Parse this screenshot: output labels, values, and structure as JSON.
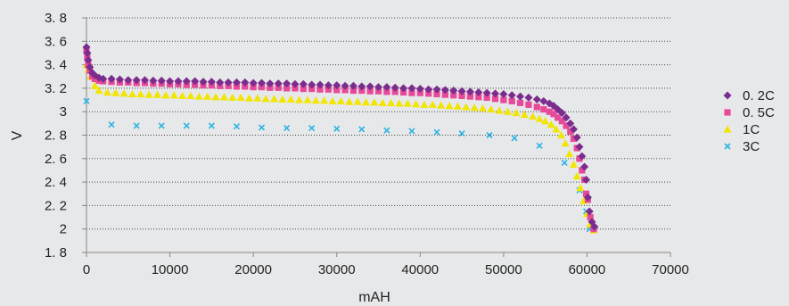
{
  "chart_data": {
    "type": "scatter",
    "xlabel": "mAH",
    "ylabel": "V",
    "xlim": [
      0,
      70000
    ],
    "ylim": [
      1.8,
      3.8
    ],
    "x_ticks": [
      "0",
      "10000",
      "20000",
      "30000",
      "40000",
      "50000",
      "60000",
      "70000"
    ],
    "x_tick_values": [
      0,
      10000,
      20000,
      30000,
      40000,
      50000,
      60000,
      70000
    ],
    "y_ticks": [
      "3. 8",
      "3. 6",
      "3. 4",
      "3. 2",
      "3",
      "2. 8",
      "2. 6",
      "2. 4",
      "2. 2",
      "2",
      "1. 8"
    ],
    "y_tick_values": [
      3.8,
      3.6,
      3.4,
      3.2,
      3.0,
      2.8,
      2.6,
      2.4,
      2.2,
      2.0,
      1.8
    ],
    "grid": "horizontal dotted",
    "legend_position": "right",
    "series": [
      {
        "name": "0. 2C",
        "marker": "diamond",
        "color": "#7b2d8e",
        "points": [
          [
            0,
            3.55
          ],
          [
            100,
            3.5
          ],
          [
            200,
            3.44
          ],
          [
            400,
            3.38
          ],
          [
            700,
            3.33
          ],
          [
            1000,
            3.31
          ],
          [
            1500,
            3.29
          ],
          [
            2000,
            3.28
          ],
          [
            3000,
            3.28
          ],
          [
            4000,
            3.275
          ],
          [
            5000,
            3.27
          ],
          [
            6000,
            3.27
          ],
          [
            7000,
            3.27
          ],
          [
            8000,
            3.265
          ],
          [
            9000,
            3.265
          ],
          [
            10000,
            3.26
          ],
          [
            11000,
            3.26
          ],
          [
            12000,
            3.26
          ],
          [
            13000,
            3.26
          ],
          [
            14000,
            3.255
          ],
          [
            15000,
            3.255
          ],
          [
            16000,
            3.25
          ],
          [
            17000,
            3.25
          ],
          [
            18000,
            3.25
          ],
          [
            19000,
            3.25
          ],
          [
            20000,
            3.245
          ],
          [
            21000,
            3.245
          ],
          [
            22000,
            3.24
          ],
          [
            23000,
            3.24
          ],
          [
            24000,
            3.24
          ],
          [
            25000,
            3.235
          ],
          [
            26000,
            3.235
          ],
          [
            27000,
            3.23
          ],
          [
            28000,
            3.23
          ],
          [
            29000,
            3.225
          ],
          [
            30000,
            3.225
          ],
          [
            31000,
            3.22
          ],
          [
            32000,
            3.22
          ],
          [
            33000,
            3.215
          ],
          [
            34000,
            3.215
          ],
          [
            35000,
            3.21
          ],
          [
            36000,
            3.21
          ],
          [
            37000,
            3.205
          ],
          [
            38000,
            3.2
          ],
          [
            39000,
            3.2
          ],
          [
            40000,
            3.195
          ],
          [
            41000,
            3.19
          ],
          [
            42000,
            3.19
          ],
          [
            43000,
            3.185
          ],
          [
            44000,
            3.18
          ],
          [
            45000,
            3.175
          ],
          [
            46000,
            3.17
          ],
          [
            47000,
            3.165
          ],
          [
            48000,
            3.16
          ],
          [
            49000,
            3.155
          ],
          [
            50000,
            3.15
          ],
          [
            51000,
            3.14
          ],
          [
            52000,
            3.13
          ],
          [
            53000,
            3.12
          ],
          [
            54000,
            3.105
          ],
          [
            54800,
            3.09
          ],
          [
            55500,
            3.07
          ],
          [
            56000,
            3.05
          ],
          [
            56500,
            3.02
          ],
          [
            57000,
            2.99
          ],
          [
            57500,
            2.95
          ],
          [
            58000,
            2.9
          ],
          [
            58400,
            2.85
          ],
          [
            58800,
            2.78
          ],
          [
            59100,
            2.7
          ],
          [
            59400,
            2.62
          ],
          [
            59700,
            2.53
          ],
          [
            59900,
            2.42
          ],
          [
            60100,
            2.27
          ],
          [
            60300,
            2.15
          ],
          [
            60600,
            2.06
          ],
          [
            60900,
            2.02
          ]
        ]
      },
      {
        "name": "0. 5C",
        "marker": "square",
        "color": "#e84a9a",
        "points": [
          [
            0,
            3.52
          ],
          [
            100,
            3.46
          ],
          [
            200,
            3.4
          ],
          [
            400,
            3.35
          ],
          [
            700,
            3.3
          ],
          [
            1000,
            3.28
          ],
          [
            1500,
            3.265
          ],
          [
            2000,
            3.26
          ],
          [
            3000,
            3.255
          ],
          [
            4000,
            3.25
          ],
          [
            5000,
            3.25
          ],
          [
            6000,
            3.245
          ],
          [
            7000,
            3.245
          ],
          [
            8000,
            3.24
          ],
          [
            9000,
            3.24
          ],
          [
            10000,
            3.235
          ],
          [
            11000,
            3.235
          ],
          [
            12000,
            3.23
          ],
          [
            13000,
            3.23
          ],
          [
            14000,
            3.225
          ],
          [
            15000,
            3.225
          ],
          [
            16000,
            3.22
          ],
          [
            17000,
            3.22
          ],
          [
            18000,
            3.215
          ],
          [
            19000,
            3.215
          ],
          [
            20000,
            3.21
          ],
          [
            21000,
            3.21
          ],
          [
            22000,
            3.205
          ],
          [
            23000,
            3.205
          ],
          [
            24000,
            3.2
          ],
          [
            25000,
            3.2
          ],
          [
            26000,
            3.195
          ],
          [
            27000,
            3.195
          ],
          [
            28000,
            3.19
          ],
          [
            29000,
            3.19
          ],
          [
            30000,
            3.185
          ],
          [
            31000,
            3.185
          ],
          [
            32000,
            3.18
          ],
          [
            33000,
            3.18
          ],
          [
            34000,
            3.175
          ],
          [
            35000,
            3.175
          ],
          [
            36000,
            3.17
          ],
          [
            37000,
            3.17
          ],
          [
            38000,
            3.165
          ],
          [
            39000,
            3.16
          ],
          [
            40000,
            3.16
          ],
          [
            41000,
            3.155
          ],
          [
            42000,
            3.15
          ],
          [
            43000,
            3.145
          ],
          [
            44000,
            3.14
          ],
          [
            45000,
            3.135
          ],
          [
            46000,
            3.13
          ],
          [
            47000,
            3.125
          ],
          [
            48000,
            3.12
          ],
          [
            49000,
            3.11
          ],
          [
            50000,
            3.1
          ],
          [
            51000,
            3.09
          ],
          [
            52000,
            3.075
          ],
          [
            53000,
            3.06
          ],
          [
            54000,
            3.04
          ],
          [
            54800,
            3.02
          ],
          [
            55500,
            3.0
          ],
          [
            56000,
            2.98
          ],
          [
            56500,
            2.95
          ],
          [
            57000,
            2.92
          ],
          [
            57500,
            2.88
          ],
          [
            58000,
            2.83
          ],
          [
            58400,
            2.77
          ],
          [
            58800,
            2.69
          ],
          [
            59100,
            2.6
          ],
          [
            59400,
            2.5
          ],
          [
            59700,
            2.42
          ],
          [
            59900,
            2.3
          ],
          [
            60100,
            2.25
          ],
          [
            60400,
            2.1
          ],
          [
            60800,
            2.0
          ]
        ]
      },
      {
        "name": "1C",
        "marker": "triangle",
        "color": "#f2e600",
        "points": [
          [
            0,
            3.4
          ],
          [
            200,
            3.36
          ],
          [
            500,
            3.3
          ],
          [
            1000,
            3.22
          ],
          [
            1500,
            3.18
          ],
          [
            2500,
            3.165
          ],
          [
            3500,
            3.16
          ],
          [
            4500,
            3.155
          ],
          [
            5500,
            3.15
          ],
          [
            6500,
            3.15
          ],
          [
            7500,
            3.145
          ],
          [
            8500,
            3.145
          ],
          [
            9500,
            3.14
          ],
          [
            10500,
            3.14
          ],
          [
            11500,
            3.135
          ],
          [
            12500,
            3.135
          ],
          [
            13500,
            3.13
          ],
          [
            14500,
            3.13
          ],
          [
            15500,
            3.125
          ],
          [
            16500,
            3.125
          ],
          [
            17500,
            3.12
          ],
          [
            18500,
            3.12
          ],
          [
            19500,
            3.115
          ],
          [
            20500,
            3.115
          ],
          [
            21500,
            3.11
          ],
          [
            22500,
            3.11
          ],
          [
            23500,
            3.105
          ],
          [
            24500,
            3.105
          ],
          [
            25500,
            3.1
          ],
          [
            26500,
            3.1
          ],
          [
            27500,
            3.095
          ],
          [
            28500,
            3.095
          ],
          [
            29500,
            3.09
          ],
          [
            30500,
            3.09
          ],
          [
            31500,
            3.085
          ],
          [
            32500,
            3.085
          ],
          [
            33500,
            3.08
          ],
          [
            34500,
            3.08
          ],
          [
            35500,
            3.075
          ],
          [
            36500,
            3.075
          ],
          [
            37500,
            3.07
          ],
          [
            38500,
            3.07
          ],
          [
            39500,
            3.065
          ],
          [
            40500,
            3.06
          ],
          [
            41500,
            3.06
          ],
          [
            42500,
            3.055
          ],
          [
            43500,
            3.05
          ],
          [
            44500,
            3.045
          ],
          [
            45500,
            3.04
          ],
          [
            46500,
            3.035
          ],
          [
            47500,
            3.03
          ],
          [
            48500,
            3.02
          ],
          [
            49500,
            3.01
          ],
          [
            50500,
            3.0
          ],
          [
            51500,
            2.99
          ],
          [
            52500,
            2.975
          ],
          [
            53500,
            2.96
          ],
          [
            54300,
            2.94
          ],
          [
            55000,
            2.92
          ],
          [
            55700,
            2.89
          ],
          [
            56300,
            2.85
          ],
          [
            56900,
            2.8
          ],
          [
            57400,
            2.73
          ],
          [
            57900,
            2.64
          ],
          [
            58400,
            2.55
          ],
          [
            58800,
            2.45
          ],
          [
            59200,
            2.35
          ],
          [
            59600,
            2.24
          ],
          [
            60000,
            2.13
          ],
          [
            60400,
            2.04
          ],
          [
            60800,
            1.99
          ]
        ]
      },
      {
        "name": "3C",
        "marker": "x",
        "color": "#2cb3e3",
        "points": [
          [
            0,
            3.09
          ],
          [
            3000,
            2.89
          ],
          [
            6000,
            2.88
          ],
          [
            9000,
            2.88
          ],
          [
            12000,
            2.88
          ],
          [
            15000,
            2.88
          ],
          [
            18000,
            2.875
          ],
          [
            21000,
            2.865
          ],
          [
            24000,
            2.86
          ],
          [
            27000,
            2.86
          ],
          [
            30000,
            2.855
          ],
          [
            33000,
            2.85
          ],
          [
            36000,
            2.84
          ],
          [
            39000,
            2.835
          ],
          [
            42000,
            2.825
          ],
          [
            45000,
            2.815
          ],
          [
            48300,
            2.8
          ],
          [
            51300,
            2.775
          ],
          [
            54300,
            2.71
          ],
          [
            57300,
            2.565
          ],
          [
            59100,
            2.33
          ],
          [
            59900,
            2.15
          ],
          [
            60300,
            2.0
          ]
        ]
      }
    ]
  }
}
